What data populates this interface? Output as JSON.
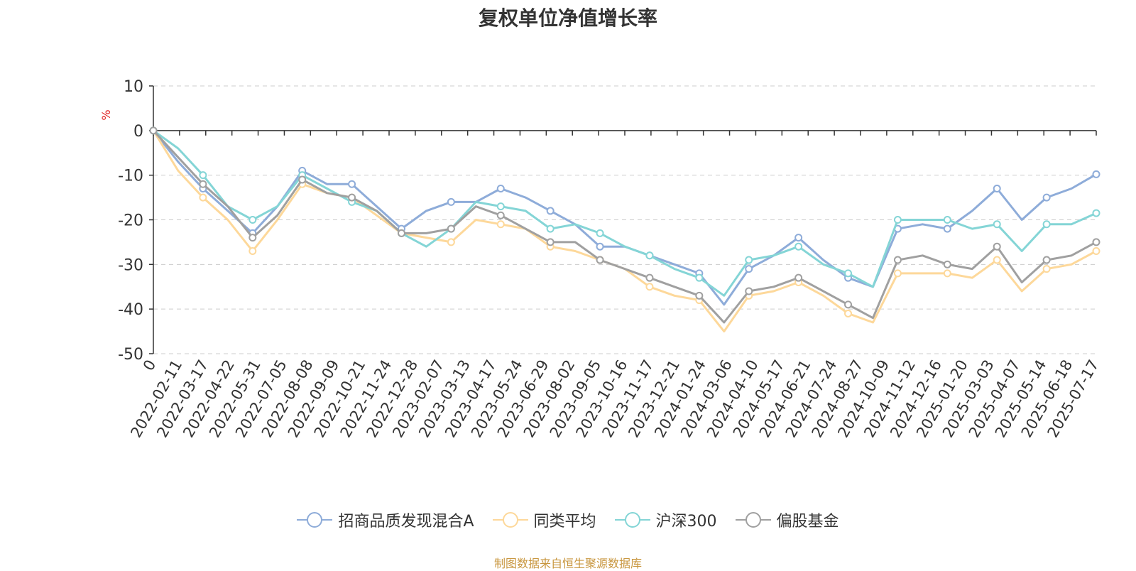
{
  "chart_data": {
    "type": "line",
    "title": "复权单位净值增长率",
    "ylabel": "%",
    "ylim": [
      -50,
      10
    ],
    "yticks": [
      10,
      0,
      -10,
      -20,
      -30,
      -40,
      -50
    ],
    "x_tick_labels": [
      "0",
      "2022-02-11",
      "2022-03-17",
      "2022-04-22",
      "2022-05-31",
      "2022-07-05",
      "2022-08-08",
      "2022-09-09",
      "2022-10-21",
      "2022-11-24",
      "2022-12-28",
      "2023-02-07",
      "2023-03-13",
      "2023-04-17",
      "2023-05-24",
      "2023-06-29",
      "2023-08-02",
      "2023-09-05",
      "2023-10-16",
      "2023-11-17",
      "2023-12-21",
      "2024-01-24",
      "2024-03-06",
      "2024-04-10",
      "2024-05-17",
      "2024-06-21",
      "2024-07-24",
      "2024-08-27",
      "2024-10-09",
      "2024-11-12",
      "2024-12-16",
      "2025-01-20",
      "2025-03-03",
      "2025-04-07",
      "2025-05-14",
      "2025-06-18",
      "2025-07-17"
    ],
    "grid": true,
    "legend_position": "bottom",
    "source": "制图数据来自恒生聚源数据库",
    "series": [
      {
        "name": "招商品质发现混合A",
        "color": "#8eacd9",
        "values": [
          0,
          -7,
          -13,
          -18,
          -23,
          -17,
          -9,
          -12,
          -12,
          -17,
          -22,
          -18,
          -16,
          -16,
          -13,
          -15,
          -18,
          -21,
          -26,
          -26,
          -28,
          -30,
          -32,
          -39,
          -31,
          -28,
          -24,
          -29,
          -33,
          -35,
          -22,
          -21,
          -22,
          -18,
          -13,
          -20,
          -15,
          -13,
          -9.8
        ]
      },
      {
        "name": "同类平均",
        "color": "#fdd89a",
        "values": [
          0,
          -9,
          -15,
          -20,
          -27,
          -20,
          -12,
          -14,
          -15,
          -19,
          -23,
          -24,
          -25,
          -20,
          -21,
          -22,
          -26,
          -27,
          -29,
          -31,
          -35,
          -37,
          -38,
          -45,
          -37,
          -36,
          -34,
          -37,
          -41,
          -43,
          -32,
          -32,
          -32,
          -33,
          -29,
          -36,
          -31,
          -30,
          -27
        ]
      },
      {
        "name": "沪深300",
        "color": "#84d5d6",
        "values": [
          0,
          -4,
          -10,
          -17,
          -20,
          -17,
          -10,
          -13,
          -16,
          -18,
          -23,
          -26,
          -22,
          -16,
          -17,
          -18,
          -22,
          -21,
          -23,
          -26,
          -28,
          -31,
          -33,
          -37,
          -29,
          -28,
          -26,
          -30,
          -32,
          -35,
          -20,
          -20,
          -20,
          -22,
          -21,
          -27,
          -21,
          -21,
          -18.5
        ]
      },
      {
        "name": "偏股基金",
        "color": "#a0a0a0",
        "values": [
          0,
          -6,
          -12,
          -17,
          -24,
          -19,
          -11,
          -14,
          -15,
          -18,
          -23,
          -23,
          -22,
          -17,
          -19,
          -22,
          -25,
          -25,
          -29,
          -31,
          -33,
          -35,
          -37,
          -43,
          -36,
          -35,
          -33,
          -36,
          -39,
          -42,
          -29,
          -28,
          -30,
          -31,
          -26,
          -34,
          -29,
          -28,
          -25
        ]
      }
    ]
  }
}
